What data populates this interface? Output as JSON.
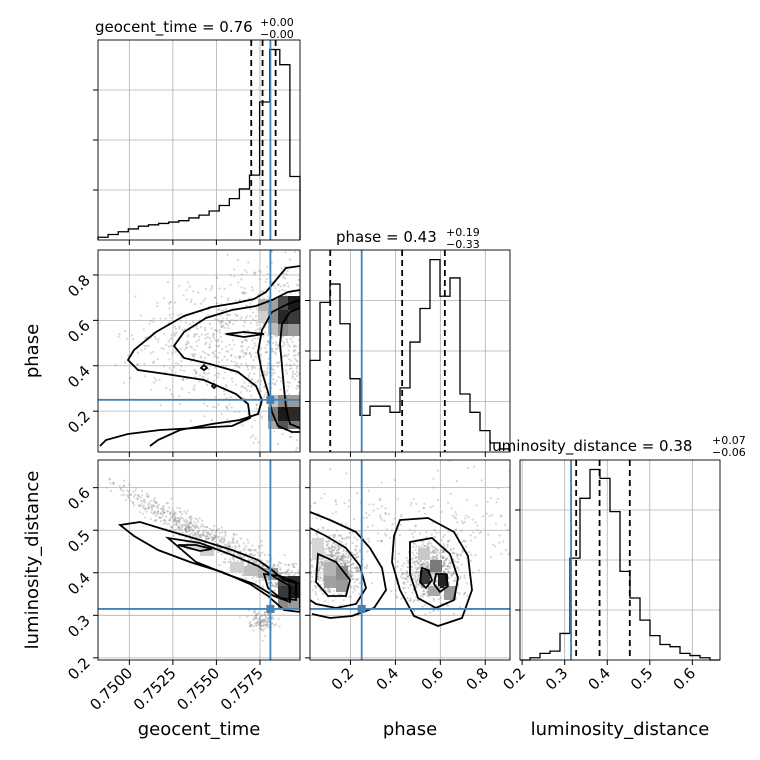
{
  "chart_data": {
    "type": "corner",
    "parameters": [
      "geocent_time",
      "phase",
      "luminosity_distance"
    ],
    "axis_labels": {
      "geocent_time": "geocent_time",
      "phase": "phase",
      "luminosity_distance": "luminosity_distance"
    },
    "ranges": {
      "geocent_time": [
        0.7482,
        0.7598
      ],
      "phase": [
        0.02,
        0.91
      ],
      "luminosity_distance": [
        0.195,
        0.665
      ]
    },
    "ticks": {
      "geocent_time": [
        "0.7500",
        "0.7525",
        "0.7550",
        "0.7575"
      ],
      "phase": [
        "0.2",
        "0.4",
        "0.6",
        "0.8"
      ],
      "luminosity_distance": [
        "0.2",
        "0.3",
        "0.4",
        "0.5",
        "0.6"
      ]
    },
    "tick_values": {
      "geocent_time": [
        0.75,
        0.7525,
        0.755,
        0.7575
      ],
      "phase": [
        0.2,
        0.4,
        0.6,
        0.8
      ],
      "luminosity_distance": [
        0.2,
        0.3,
        0.4,
        0.5,
        0.6
      ]
    },
    "titles": {
      "geocent_time": {
        "main": "geocent_time = 0.76",
        "plus": "+0.00",
        "minus": "−0.00"
      },
      "phase": {
        "main": "phase = 0.43",
        "plus": "+0.19",
        "minus": "−0.33"
      },
      "luminosity_distance": {
        "main": "luminosity_distance = 0.38",
        "plus": "+0.07",
        "minus": "−0.06"
      }
    },
    "truth": {
      "geocent_time": 0.7581,
      "phase": 0.25,
      "luminosity_distance": 0.315
    },
    "quantiles": {
      "geocent_time": [
        0.757,
        0.75765,
        0.7584
      ],
      "phase": [
        0.11,
        0.43,
        0.62
      ],
      "luminosity_distance": [
        0.327,
        0.382,
        0.453
      ]
    },
    "histograms": {
      "geocent_time": {
        "edges": [
          0.7482,
          0.74878,
          0.74936,
          0.74994,
          0.75052,
          0.7511,
          0.75168,
          0.75226,
          0.75284,
          0.75342,
          0.754,
          0.75458,
          0.75516,
          0.75574,
          0.75632,
          0.7569,
          0.75748,
          0.75806,
          0.75864,
          0.75922,
          0.7598
        ],
        "counts": [
          2,
          4,
          6,
          8,
          10,
          11,
          12,
          13,
          14,
          16,
          18,
          21,
          25,
          30,
          37,
          47,
          100,
          138,
          127,
          46
        ]
      },
      "phase": {
        "edges": [
          0.02,
          0.0645,
          0.109,
          0.1535,
          0.198,
          0.2425,
          0.287,
          0.3315,
          0.376,
          0.4205,
          0.465,
          0.5095,
          0.554,
          0.5985,
          0.643,
          0.6875,
          0.732,
          0.7765,
          0.821,
          0.8655,
          0.91
        ],
        "counts": [
          30,
          49,
          55,
          42,
          24,
          12,
          15,
          15,
          13,
          21,
          36,
          47,
          63,
          51,
          57,
          19,
          13,
          7,
          3,
          1
        ]
      },
      "luminosity_distance": {
        "edges": [
          0.195,
          0.2185,
          0.242,
          0.2655,
          0.289,
          0.3125,
          0.336,
          0.3595,
          0.383,
          0.4065,
          0.43,
          0.4535,
          0.477,
          0.5005,
          0.524,
          0.5475,
          0.571,
          0.5945,
          0.618,
          0.6415,
          0.665
        ],
        "counts": [
          0,
          1,
          3,
          4,
          12,
          46,
          73,
          86,
          82,
          67,
          40,
          28,
          18,
          11,
          7,
          6,
          3,
          2,
          1,
          0
        ]
      }
    }
  }
}
